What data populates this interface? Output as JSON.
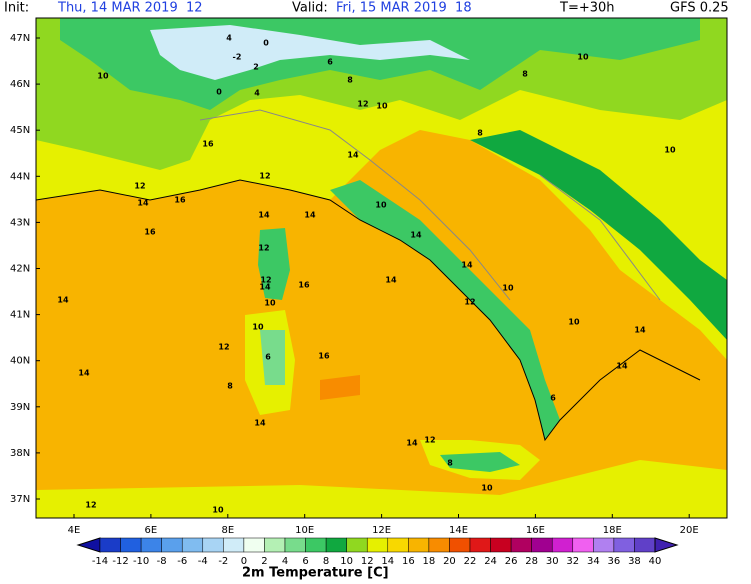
{
  "header": {
    "init_label": "Init:",
    "init": "Thu, 14 MAR 2019  12",
    "valid_label": "Valid:",
    "valid": "Fri, 15 MAR 2019  18",
    "lead": "T=+30h",
    "model": "GFS 0.25"
  },
  "lat_labels": [
    "47N",
    "46N",
    "45N",
    "44N",
    "43N",
    "42N",
    "41N",
    "40N",
    "39N",
    "38N",
    "37N"
  ],
  "lon_labels": [
    "4E",
    "6E",
    "8E",
    "10E",
    "12E",
    "14E",
    "16E",
    "18E",
    "20E"
  ],
  "contour_labels": [
    0,
    4,
    -2,
    2,
    0,
    4,
    6,
    8,
    10,
    10,
    8,
    12,
    10,
    8,
    10,
    16,
    12,
    12,
    14,
    14,
    16,
    14,
    14,
    16,
    12,
    14,
    12,
    10,
    16,
    10,
    6,
    12,
    8,
    12,
    14,
    10,
    14,
    14,
    14,
    16,
    14,
    10,
    14,
    14,
    6,
    8,
    12,
    10,
    14,
    14,
    10,
    12,
    10
  ],
  "colorbar": {
    "ticks": [
      -14,
      -12,
      -10,
      -8,
      -6,
      -4,
      -2,
      0,
      2,
      4,
      6,
      8,
      10,
      12,
      14,
      16,
      18,
      20,
      22,
      24,
      26,
      28,
      30,
      32,
      34,
      36,
      38,
      40
    ],
    "colors": [
      "#1010a0",
      "#1a3cc8",
      "#2060e0",
      "#3c84e8",
      "#5aa0ec",
      "#80bcf0",
      "#a8d4f4",
      "#d0ecf8",
      "#f0fff0",
      "#b4f0b4",
      "#78dc8c",
      "#3cc864",
      "#10a840",
      "#90d820",
      "#e6f000",
      "#f8d800",
      "#f8b400",
      "#f88c00",
      "#f05000",
      "#e01818",
      "#c80020",
      "#b00060",
      "#a00090",
      "#d020d0",
      "#f060f0",
      "#b080f0",
      "#8060e0",
      "#6040c8",
      "#4020b0"
    ],
    "title": "2m Temperature [C]"
  }
}
